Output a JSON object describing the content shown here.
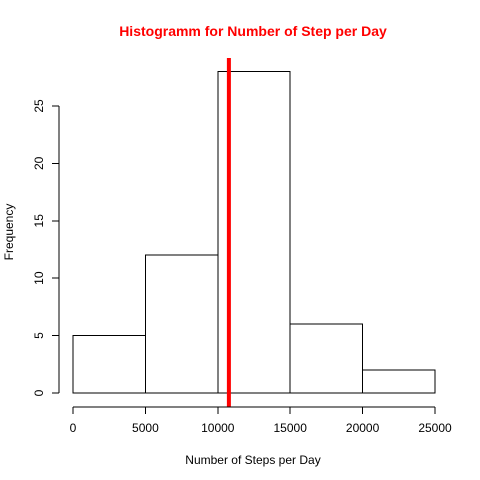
{
  "chart_data": {
    "type": "bar",
    "subtype": "histogram",
    "title": "Histogramm for Number of Step per Day",
    "title_color": "#ff0000",
    "xlabel": "Number of Steps per Day",
    "ylabel": "Frequency",
    "bins": [
      {
        "from": 0,
        "to": 5000,
        "count": 5
      },
      {
        "from": 5000,
        "to": 10000,
        "count": 12
      },
      {
        "from": 10000,
        "to": 15000,
        "count": 28
      },
      {
        "from": 15000,
        "to": 20000,
        "count": 6
      },
      {
        "from": 20000,
        "to": 25000,
        "count": 2
      }
    ],
    "x_ticks": [
      0,
      5000,
      10000,
      15000,
      20000,
      25000
    ],
    "x_tick_labels": [
      "0",
      "5000",
      "10000",
      "15000",
      "20000",
      "25000"
    ],
    "y_ticks": [
      0,
      5,
      10,
      15,
      20,
      25
    ],
    "y_tick_labels": [
      "0",
      "5",
      "10",
      "15",
      "20",
      "25"
    ],
    "xlim": [
      0,
      25000
    ],
    "ylim": [
      0,
      28
    ],
    "reference_line": {
      "x": 10766,
      "color": "#ff0000"
    },
    "bar_fill": "#ffffff",
    "bar_stroke": "#000000",
    "grid": false,
    "legend": "none"
  }
}
